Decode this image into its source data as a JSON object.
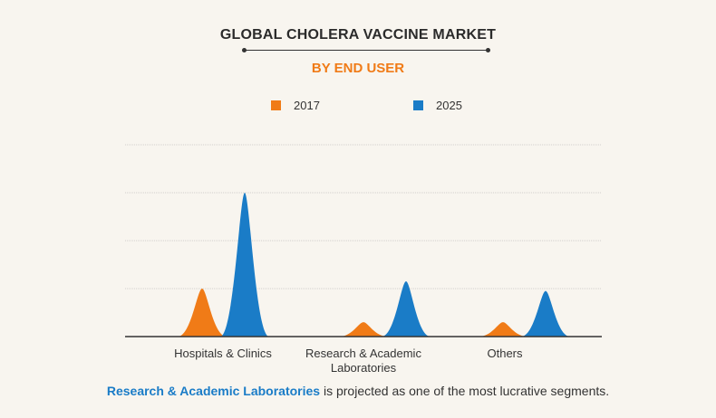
{
  "chart_data": {
    "type": "area",
    "title": "GLOBAL CHOLERA VACCINE MARKET",
    "subtitle": "BY END USER",
    "categories": [
      "Hospitals & Clinics",
      "Research & Academic\nLaboratories",
      "Others"
    ],
    "series": [
      {
        "name": "2017",
        "color": "#f07b17",
        "values": [
          1.0,
          0.3,
          0.3
        ]
      },
      {
        "name": "2025",
        "color": "#1a7cc7",
        "values": [
          3.0,
          1.15,
          0.95
        ]
      }
    ],
    "ylim": [
      0,
      4
    ],
    "grid": true,
    "legend_position": "top-center"
  },
  "footnote": {
    "highlight": "Research & Academic Laboratories",
    "rest": " is projected as one of the most lucrative segments."
  }
}
